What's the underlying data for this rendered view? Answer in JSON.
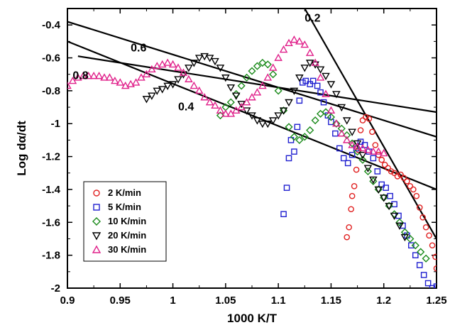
{
  "chart_data": {
    "type": "scatter",
    "xlabel": "1000 K/T",
    "ylabel": "Log dα/dt",
    "xlim": [
      0.9,
      1.25
    ],
    "ylim": [
      -2.0,
      -0.3
    ],
    "x_ticks": [
      "0.9",
      "0.95",
      "1",
      "1.05",
      "1.1",
      "1.15",
      "1.2",
      "1.25"
    ],
    "y_ticks": [
      "-0.4",
      "-0.6",
      "-0.8",
      "-1",
      "-1.2",
      "-1.4",
      "-1.6",
      "-1.8",
      "-2"
    ],
    "x_tick_values": [
      0.9,
      0.95,
      1.0,
      1.05,
      1.1,
      1.15,
      1.2,
      1.25
    ],
    "y_tick_values": [
      -0.4,
      -0.6,
      -0.8,
      -1.0,
      -1.2,
      -1.4,
      -1.6,
      -1.8,
      -2.0
    ],
    "grid": false,
    "legend_position": "bottom-left",
    "iso_lines": [
      {
        "label": "0.2",
        "x": [
          1.125,
          1.25
        ],
        "y": [
          -0.3,
          -1.7
        ]
      },
      {
        "label": "0.6",
        "x": [
          0.9,
          1.25
        ],
        "y": [
          -0.38,
          -1.08
        ]
      },
      {
        "label": "0.8",
        "x": [
          0.91,
          1.25
        ],
        "y": [
          -0.59,
          -0.93
        ]
      },
      {
        "label": "0.4",
        "x": [
          0.9,
          1.25
        ],
        "y": [
          -0.5,
          -1.4
        ]
      }
    ],
    "iso_label_positions": [
      {
        "label": "0.2",
        "x": 1.125,
        "y": -0.38
      },
      {
        "label": "0.6",
        "x": 0.96,
        "y": -0.56
      },
      {
        "label": "0.8",
        "x": 0.905,
        "y": -0.73
      },
      {
        "label": "0.4",
        "x": 1.005,
        "y": -0.92
      }
    ],
    "series": [
      {
        "name": "2 K/min",
        "marker": "circle",
        "color": "#e02020",
        "x": [
          1.165,
          1.167,
          1.169,
          1.17,
          1.172,
          1.174,
          1.176,
          1.178,
          1.18,
          1.183,
          1.186,
          1.189,
          1.192,
          1.195,
          1.198,
          1.201,
          1.204,
          1.207,
          1.21,
          1.213,
          1.216,
          1.219,
          1.222,
          1.225,
          1.228,
          1.231,
          1.234,
          1.237,
          1.24,
          1.243,
          1.246,
          1.249,
          1.25
        ],
        "y": [
          -1.69,
          -1.63,
          -1.52,
          -1.44,
          -1.38,
          -1.28,
          -1.16,
          -1.04,
          -0.98,
          -0.96,
          -0.97,
          -1.05,
          -1.13,
          -1.19,
          -1.22,
          -1.25,
          -1.27,
          -1.29,
          -1.3,
          -1.32,
          -1.31,
          -1.33,
          -1.35,
          -1.38,
          -1.4,
          -1.44,
          -1.51,
          -1.57,
          -1.63,
          -1.68,
          -1.74,
          -1.81,
          -1.88
        ]
      },
      {
        "name": "5 K/min",
        "marker": "square",
        "color": "#2020d0",
        "x": [
          1.105,
          1.108,
          1.11,
          1.112,
          1.115,
          1.118,
          1.12,
          1.123,
          1.126,
          1.13,
          1.133,
          1.137,
          1.14,
          1.143,
          1.147,
          1.15,
          1.154,
          1.158,
          1.162,
          1.166,
          1.17,
          1.174,
          1.178,
          1.182,
          1.186,
          1.19,
          1.194,
          1.198,
          1.202,
          1.206,
          1.21,
          1.214,
          1.218,
          1.222,
          1.226,
          1.23,
          1.234,
          1.238,
          1.242,
          1.246,
          1.25
        ],
        "y": [
          -1.55,
          -1.39,
          -1.21,
          -1.1,
          -1.17,
          -1.02,
          -0.86,
          -0.75,
          -0.74,
          -0.76,
          -0.74,
          -0.77,
          -0.81,
          -0.87,
          -0.95,
          -0.99,
          -1.06,
          -1.15,
          -1.21,
          -1.24,
          -1.19,
          -1.15,
          -1.11,
          -1.13,
          -1.17,
          -1.21,
          -1.29,
          -1.37,
          -1.39,
          -1.44,
          -1.49,
          -1.56,
          -1.62,
          -1.68,
          -1.74,
          -1.8,
          -1.86,
          -1.92,
          -1.97,
          -2.0,
          -1.99
        ]
      },
      {
        "name": "10 K/min",
        "marker": "diamond",
        "color": "#1a8a1a",
        "x": [
          1.045,
          1.05,
          1.055,
          1.06,
          1.065,
          1.07,
          1.075,
          1.08,
          1.085,
          1.09,
          1.095,
          1.1,
          1.105,
          1.11,
          1.115,
          1.12,
          1.125,
          1.13,
          1.135,
          1.14,
          1.145,
          1.15,
          1.155,
          1.16,
          1.165,
          1.17,
          1.175,
          1.18,
          1.185,
          1.19,
          1.195,
          1.2,
          1.205,
          1.21,
          1.215,
          1.22,
          1.225,
          1.23,
          1.235,
          1.24
        ],
        "y": [
          -0.95,
          -0.9,
          -0.87,
          -0.82,
          -0.77,
          -0.72,
          -0.68,
          -0.65,
          -0.63,
          -0.64,
          -0.7,
          -0.8,
          -0.92,
          -1.02,
          -1.08,
          -1.1,
          -1.08,
          -1.04,
          -0.98,
          -0.94,
          -0.93,
          -0.96,
          -1.0,
          -1.03,
          -1.07,
          -1.12,
          -1.17,
          -1.22,
          -1.29,
          -1.35,
          -1.4,
          -1.45,
          -1.5,
          -1.55,
          -1.6,
          -1.66,
          -1.7,
          -1.74,
          -1.78,
          -1.82
        ]
      },
      {
        "name": "20 K/min",
        "marker": "triangle-down",
        "color": "#000000",
        "x": [
          0.975,
          0.98,
          0.985,
          0.99,
          0.995,
          1.0,
          1.005,
          1.01,
          1.015,
          1.02,
          1.025,
          1.03,
          1.035,
          1.04,
          1.045,
          1.05,
          1.055,
          1.06,
          1.065,
          1.07,
          1.075,
          1.08,
          1.085,
          1.09,
          1.095,
          1.1,
          1.105,
          1.11,
          1.115,
          1.12,
          1.125,
          1.13,
          1.135,
          1.14,
          1.145,
          1.15,
          1.155,
          1.16,
          1.165,
          1.17,
          1.175,
          1.18,
          1.185,
          1.19,
          1.195,
          1.2,
          1.205,
          1.21,
          1.215,
          1.22
        ],
        "y": [
          -0.85,
          -0.83,
          -0.8,
          -0.79,
          -0.77,
          -0.76,
          -0.73,
          -0.7,
          -0.66,
          -0.63,
          -0.6,
          -0.59,
          -0.6,
          -0.62,
          -0.66,
          -0.72,
          -0.78,
          -0.83,
          -0.88,
          -0.92,
          -0.95,
          -0.98,
          -1.0,
          -1.0,
          -0.98,
          -0.95,
          -0.92,
          -0.87,
          -0.8,
          -0.72,
          -0.66,
          -0.63,
          -0.64,
          -0.67,
          -0.71,
          -0.76,
          -0.82,
          -0.9,
          -0.98,
          -1.05,
          -1.12,
          -1.19,
          -1.27,
          -1.34,
          -1.4,
          -1.45,
          -1.5,
          -1.56,
          -1.62,
          -1.69
        ]
      },
      {
        "name": "30 K/min",
        "marker": "triangle-up",
        "color": "#e0208a",
        "x": [
          0.9,
          0.905,
          0.91,
          0.915,
          0.92,
          0.925,
          0.93,
          0.935,
          0.94,
          0.945,
          0.95,
          0.955,
          0.96,
          0.965,
          0.97,
          0.975,
          0.98,
          0.985,
          0.99,
          0.995,
          1.0,
          1.005,
          1.01,
          1.015,
          1.02,
          1.025,
          1.03,
          1.035,
          1.04,
          1.045,
          1.05,
          1.055,
          1.06,
          1.065,
          1.07,
          1.075,
          1.08,
          1.085,
          1.09,
          1.095,
          1.1,
          1.105,
          1.11,
          1.115,
          1.12,
          1.125,
          1.13,
          1.135,
          1.14,
          1.145,
          1.15,
          1.155,
          1.16,
          1.165,
          1.17,
          1.175,
          1.18,
          1.185,
          1.19,
          1.195,
          1.2
        ],
        "y": [
          -0.77,
          -0.74,
          -0.72,
          -0.71,
          -0.71,
          -0.71,
          -0.71,
          -0.72,
          -0.72,
          -0.74,
          -0.75,
          -0.77,
          -0.76,
          -0.75,
          -0.72,
          -0.7,
          -0.67,
          -0.65,
          -0.64,
          -0.63,
          -0.64,
          -0.66,
          -0.69,
          -0.73,
          -0.77,
          -0.8,
          -0.84,
          -0.87,
          -0.89,
          -0.92,
          -0.94,
          -0.94,
          -0.92,
          -0.9,
          -0.87,
          -0.84,
          -0.81,
          -0.77,
          -0.72,
          -0.66,
          -0.6,
          -0.55,
          -0.51,
          -0.49,
          -0.5,
          -0.52,
          -0.57,
          -0.63,
          -0.72,
          -0.82,
          -0.92,
          -1.0,
          -1.06,
          -1.1,
          -1.13,
          -1.14,
          -1.15,
          -1.16,
          -1.17,
          -1.17,
          -1.18
        ]
      }
    ]
  }
}
